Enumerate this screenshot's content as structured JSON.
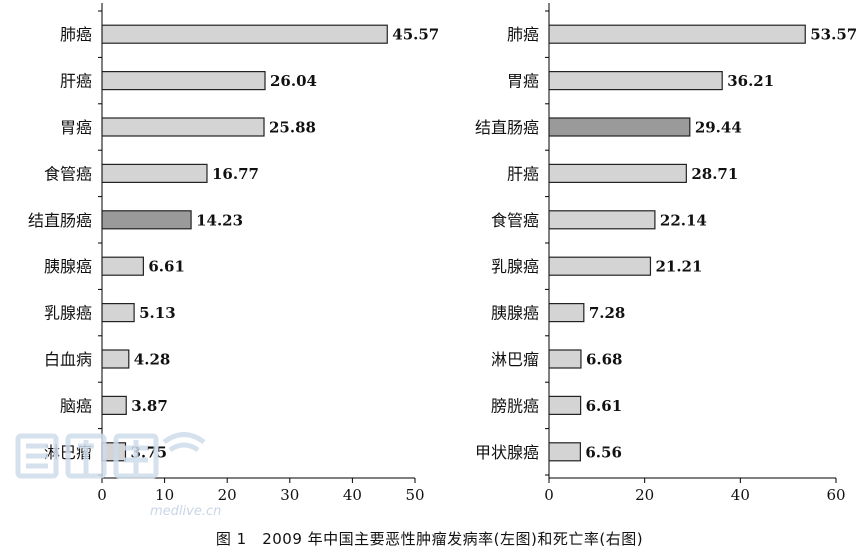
{
  "chart_data": [
    {
      "type": "bar",
      "orientation": "horizontal",
      "categories": [
        "肺癌",
        "肝癌",
        "胃癌",
        "食管癌",
        "结直肠癌",
        "胰腺癌",
        "乳腺癌",
        "白血病",
        "脑癌",
        "淋巴瘤"
      ],
      "values": [
        45.57,
        26.04,
        25.88,
        16.77,
        14.23,
        6.61,
        5.13,
        4.28,
        3.87,
        3.75
      ],
      "value_labels": [
        "45.57",
        "26.04",
        "25.88",
        "16.77",
        "14.23",
        "6.61",
        "5.13",
        "4.28",
        "3.87",
        "3.75"
      ],
      "highlight": "结直肠癌",
      "xlim": [
        0,
        50
      ],
      "xticks": [
        "0",
        "10",
        "20",
        "30",
        "40",
        "50"
      ],
      "xtick_values": [
        0,
        10,
        20,
        30,
        40,
        50
      ],
      "grid": false
    },
    {
      "type": "bar",
      "orientation": "horizontal",
      "categories": [
        "肺癌",
        "胃癌",
        "结直肠癌",
        "肝癌",
        "食管癌",
        "乳腺癌",
        "胰腺癌",
        "淋巴瘤",
        "膀胱癌",
        "甲状腺癌"
      ],
      "values": [
        53.57,
        36.21,
        29.44,
        28.71,
        22.14,
        21.21,
        7.28,
        6.68,
        6.61,
        6.56
      ],
      "value_labels": [
        "53.57",
        "36.21",
        "29.44",
        "28.71",
        "22.14",
        "21.21",
        "7.28",
        "6.68",
        "6.61",
        "6.56"
      ],
      "highlight": "结直肠癌",
      "xlim": [
        0,
        60
      ],
      "xticks": [
        "0",
        "20",
        "40",
        "60"
      ],
      "xtick_values": [
        0,
        20,
        40,
        60
      ],
      "grid": false
    }
  ],
  "colors": {
    "bar": "#d4d4d4",
    "highlight_bar": "#9a9a9a",
    "stroke": "#222222"
  },
  "caption": "图 1　2009 年中国主要恶性肿瘤发病率(左图)和死亡率(右图)",
  "watermark": {
    "text": "medlive.cn",
    "logo": "医脉通"
  }
}
